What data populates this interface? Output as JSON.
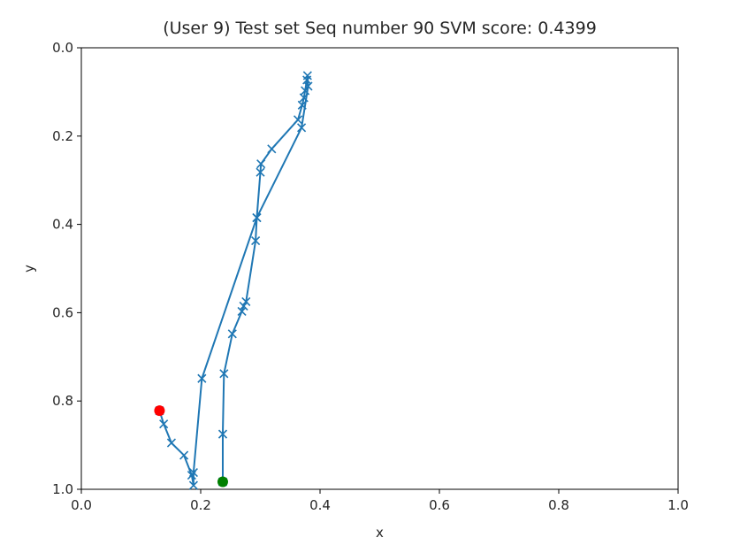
{
  "chart_data": {
    "type": "line",
    "title": "(User 9) Test set Seq number 90    SVM score: 0.4399",
    "xlabel": "x",
    "ylabel": "y",
    "xlim": [
      0.0,
      1.0
    ],
    "ylim": [
      0.0,
      1.0
    ],
    "y_inverted": true,
    "grid": false,
    "x_ticks": [
      "0.0",
      "0.2",
      "0.4",
      "0.6",
      "0.8",
      "1.0"
    ],
    "y_ticks": [
      "0.0",
      "0.2",
      "0.4",
      "0.6",
      "0.8",
      "1.0"
    ],
    "series": [
      {
        "color": "#1f77b4",
        "marker": "x",
        "points": [
          [
            0.237,
            0.983
          ],
          [
            0.237,
            0.875
          ],
          [
            0.239,
            0.738
          ],
          [
            0.253,
            0.648
          ],
          [
            0.269,
            0.597
          ],
          [
            0.272,
            0.585
          ],
          [
            0.276,
            0.575
          ],
          [
            0.292,
            0.437
          ],
          [
            0.294,
            0.385
          ],
          [
            0.3,
            0.282
          ],
          [
            0.301,
            0.263
          ],
          [
            0.319,
            0.229
          ],
          [
            0.363,
            0.163
          ],
          [
            0.37,
            0.13
          ],
          [
            0.373,
            0.113
          ],
          [
            0.375,
            0.097
          ],
          [
            0.378,
            0.073
          ],
          [
            0.379,
            0.063
          ],
          [
            0.38,
            0.087
          ],
          [
            0.369,
            0.181
          ],
          [
            0.294,
            0.385
          ],
          [
            0.202,
            0.749
          ],
          [
            0.188,
            0.962
          ],
          [
            0.188,
            0.991
          ],
          [
            0.185,
            0.968
          ],
          [
            0.172,
            0.923
          ],
          [
            0.151,
            0.895
          ],
          [
            0.138,
            0.852
          ],
          [
            0.131,
            0.822
          ]
        ]
      }
    ],
    "start_point": {
      "x": 0.237,
      "y": 0.983,
      "color": "#008000"
    },
    "end_point": {
      "x": 0.131,
      "y": 0.822,
      "color": "#ff0000"
    }
  }
}
